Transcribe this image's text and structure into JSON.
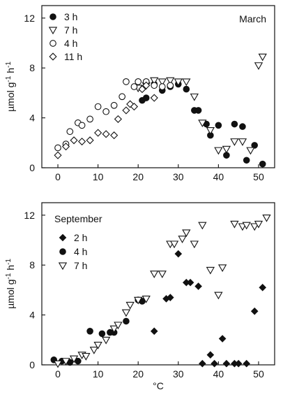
{
  "chart_data": [
    {
      "type": "scatter",
      "panel_label": "March",
      "ylabel": "µmol g-1 h-1",
      "xlabel": "",
      "xlim": [
        -4,
        54
      ],
      "ylim": [
        0,
        13
      ],
      "xticks": [
        0,
        10,
        20,
        30,
        40,
        50
      ],
      "yticks": [
        0,
        4,
        8,
        12
      ],
      "legend": "top-left",
      "series": [
        {
          "name": "3 h",
          "marker": "filled-circle",
          "points": [
            [
              21,
              5.4
            ],
            [
              22,
              5.6
            ],
            [
              24,
              6.7
            ],
            [
              26,
              6.2
            ],
            [
              28,
              6.5
            ],
            [
              30,
              6.7
            ],
            [
              32,
              6.3
            ],
            [
              34,
              4.6
            ],
            [
              35,
              4.6
            ],
            [
              37,
              3.5
            ],
            [
              38,
              2.6
            ],
            [
              40,
              3.4
            ],
            [
              42,
              1.0
            ],
            [
              44,
              3.5
            ],
            [
              46,
              3.3
            ],
            [
              47,
              0.6
            ],
            [
              49,
              1.8
            ],
            [
              51,
              0.3
            ]
          ]
        },
        {
          "name": "7 h",
          "marker": "open-triangle-down",
          "points": [
            [
              20,
              6.4
            ],
            [
              22,
              6.6
            ],
            [
              24,
              7.0
            ],
            [
              26,
              6.9
            ],
            [
              28,
              7.0
            ],
            [
              30,
              6.9
            ],
            [
              32,
              6.9
            ],
            [
              34,
              5.7
            ],
            [
              36,
              3.6
            ],
            [
              38,
              3.0
            ],
            [
              40,
              1.4
            ],
            [
              42,
              1.5
            ],
            [
              44,
              2.1
            ],
            [
              46,
              2.1
            ],
            [
              48,
              1.4
            ],
            [
              50,
              8.2
            ],
            [
              51,
              8.9
            ]
          ]
        },
        {
          "name": "4 h",
          "marker": "open-circle",
          "points": [
            [
              0,
              1.6
            ],
            [
              2,
              1.9
            ],
            [
              3,
              2.9
            ],
            [
              5,
              3.6
            ],
            [
              6,
              3.4
            ],
            [
              8,
              3.9
            ],
            [
              10,
              4.9
            ],
            [
              12,
              4.5
            ],
            [
              14,
              5.0
            ],
            [
              16,
              5.7
            ],
            [
              17,
              6.9
            ],
            [
              19,
              6.5
            ],
            [
              20,
              6.9
            ],
            [
              22,
              6.9
            ],
            [
              24,
              6.6
            ],
            [
              26,
              6.5
            ],
            [
              28,
              6.6
            ]
          ]
        },
        {
          "name": "11 h",
          "marker": "open-diamond",
          "points": [
            [
              0,
              1.0
            ],
            [
              2,
              1.7
            ],
            [
              4,
              2.2
            ],
            [
              6,
              2.1
            ],
            [
              8,
              2.2
            ],
            [
              10,
              2.8
            ],
            [
              12,
              2.7
            ],
            [
              14,
              2.6
            ],
            [
              15,
              3.9
            ],
            [
              17,
              4.6
            ],
            [
              18,
              5.1
            ],
            [
              19,
              4.9
            ],
            [
              21,
              6.3
            ],
            [
              22,
              6.6
            ],
            [
              24,
              5.6
            ]
          ]
        }
      ]
    },
    {
      "type": "scatter",
      "panel_label": "September",
      "ylabel": "µmol g-1 h-1",
      "xlabel": "°C",
      "xlim": [
        -4,
        54
      ],
      "ylim": [
        0,
        13
      ],
      "xticks": [
        0,
        10,
        20,
        30,
        40,
        50
      ],
      "yticks": [
        0,
        4,
        8,
        12
      ],
      "legend": "top-left",
      "series": [
        {
          "name": "2 h",
          "marker": "filled-diamond",
          "points": [
            [
              24,
              2.7
            ],
            [
              27,
              5.3
            ],
            [
              28,
              5.4
            ],
            [
              30,
              8.9
            ],
            [
              32,
              6.6
            ],
            [
              33,
              6.6
            ],
            [
              35,
              6.3
            ],
            [
              36,
              0.1
            ],
            [
              38,
              0.8
            ],
            [
              39,
              0.1
            ],
            [
              41,
              2.1
            ],
            [
              42,
              0.1
            ],
            [
              44,
              0.1
            ],
            [
              45,
              0.1
            ],
            [
              47,
              0.1
            ],
            [
              49,
              4.3
            ],
            [
              51,
              6.2
            ]
          ]
        },
        {
          "name": "4 h",
          "marker": "filled-circle",
          "points": [
            [
              -1,
              0.4
            ],
            [
              1,
              0.3
            ],
            [
              3,
              0.2
            ],
            [
              5,
              0.3
            ],
            [
              8,
              2.7
            ],
            [
              11,
              2.5
            ],
            [
              13,
              2.6
            ],
            [
              14,
              2.6
            ],
            [
              17,
              3.5
            ],
            [
              20,
              5.2
            ],
            [
              21,
              5.1
            ]
          ]
        },
        {
          "name": "7 h",
          "marker": "open-triangle-down",
          "points": [
            [
              0,
              0.1
            ],
            [
              2,
              0.3
            ],
            [
              4,
              0.5
            ],
            [
              6,
              0.8
            ],
            [
              7,
              0.7
            ],
            [
              9,
              1.2
            ],
            [
              10,
              1.6
            ],
            [
              12,
              2.0
            ],
            [
              14,
              2.9
            ],
            [
              15,
              3.2
            ],
            [
              17,
              4.2
            ],
            [
              18,
              4.8
            ],
            [
              20,
              5.2
            ],
            [
              22,
              5.3
            ],
            [
              24,
              7.3
            ],
            [
              26,
              7.3
            ],
            [
              28,
              9.7
            ],
            [
              29,
              9.7
            ],
            [
              31,
              10.1
            ],
            [
              32,
              10.6
            ],
            [
              34,
              9.7
            ],
            [
              36,
              11.2
            ],
            [
              38,
              7.6
            ],
            [
              40,
              5.6
            ],
            [
              41,
              7.8
            ],
            [
              44,
              11.3
            ],
            [
              46,
              11.1
            ],
            [
              47,
              11.2
            ],
            [
              49,
              11.1
            ],
            [
              50,
              11.3
            ],
            [
              52,
              11.8
            ]
          ]
        }
      ]
    }
  ]
}
